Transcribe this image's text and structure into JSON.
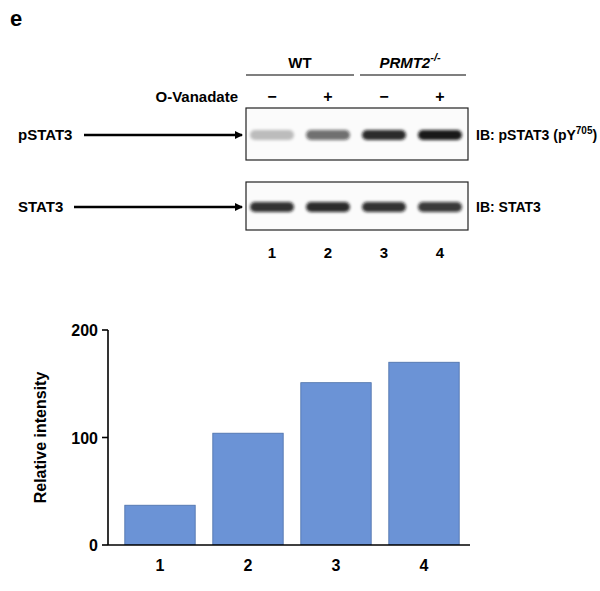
{
  "panel_label": "e",
  "blot": {
    "groups": [
      {
        "label": "WT"
      },
      {
        "label": "PRMT2",
        "label_superscript": "-/-"
      }
    ],
    "treatment": "O-Vanadate",
    "treatment_signs": [
      "−",
      "+",
      "−",
      "+"
    ],
    "rows": [
      {
        "name": "pSTAT3",
        "antibody": "IB: pSTAT3 (pY",
        "antibody_superscript": "705",
        "antibody_end": ")"
      },
      {
        "name": "STAT3",
        "antibody": "IB: STAT3"
      }
    ],
    "lanes": [
      "1",
      "2",
      "3",
      "4"
    ]
  },
  "chart_data": {
    "type": "bar",
    "y_label": "Relative intensity",
    "categories": [
      "1",
      "2",
      "3",
      "4"
    ],
    "values": [
      37,
      104,
      151,
      170
    ],
    "color": "#6b93d6",
    "ylim": [
      0,
      200
    ],
    "yticks": [
      0,
      100,
      200
    ]
  }
}
